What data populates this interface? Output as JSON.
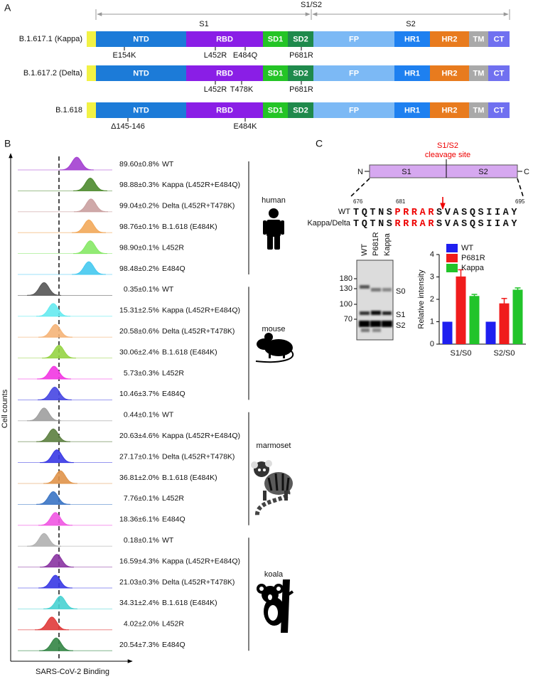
{
  "panel_a": {
    "label": "A",
    "regions": {
      "s1": "S1",
      "junction": "S1/S2",
      "s2": "S2"
    },
    "domains": [
      "NTD",
      "RBD",
      "SD1",
      "SD2",
      "FP",
      "HR1",
      "HR2",
      "TM",
      "CT"
    ],
    "variants": [
      {
        "name": "B.1.617.1 (Kappa)",
        "mutations": [
          "E154K",
          "L452R",
          "E484Q",
          "P681R"
        ]
      },
      {
        "name": "B.1.617.2 (Delta)",
        "mutations": [
          "L452R",
          "T478K",
          "P681R"
        ]
      },
      {
        "name": "B.1.618",
        "mutations": [
          "Δ145-146",
          "E484K"
        ]
      }
    ]
  },
  "panel_b": {
    "label": "B",
    "y_label": "Cell counts",
    "x_label": "SARS-CoV-2 Binding",
    "groups": [
      {
        "species": "human",
        "rows": [
          {
            "value": "89.60±0.8%",
            "name": "WT",
            "color": "#a33fd0"
          },
          {
            "value": "98.88±0.3%",
            "name": "Kappa (L452R+E484Q)",
            "color": "#4d8a2e"
          },
          {
            "value": "99.04±0.2%",
            "name": "Delta (L452R+T478K)",
            "color": "#caa0a0"
          },
          {
            "value": "98.76±0.1%",
            "name": "B.1.618 (E484K)",
            "color": "#f2a85a"
          },
          {
            "value": "98.90±0.1%",
            "name": "L452R",
            "color": "#86e866"
          },
          {
            "value": "98.48±0.2%",
            "name": "E484Q",
            "color": "#45c9f0"
          }
        ]
      },
      {
        "species": "mouse",
        "rows": [
          {
            "value": "0.35±0.1%",
            "name": "WT",
            "color": "#555555"
          },
          {
            "value": "15.31±2.5%",
            "name": "Kappa (L452R+E484Q)",
            "color": "#66eaf0"
          },
          {
            "value": "20.58±0.6%",
            "name": "Delta (L452R+T478K)",
            "color": "#f5b478"
          },
          {
            "value": "30.06±2.4%",
            "name": "B.1.618 (E484K)",
            "color": "#96d444"
          },
          {
            "value": "5.73±0.3%",
            "name": "L452R",
            "color": "#f236e2"
          },
          {
            "value": "10.46±3.7%",
            "name": "E484Q",
            "color": "#4646e2"
          }
        ]
      },
      {
        "species": "marmoset",
        "rows": [
          {
            "value": "0.44±0.1%",
            "name": "WT",
            "color": "#9e9e9e"
          },
          {
            "value": "20.63±4.6%",
            "name": "Kappa (L452R+E484Q)",
            "color": "#5c7f40"
          },
          {
            "value": "27.17±0.1%",
            "name": "Delta (L452R+T478K)",
            "color": "#3838e4"
          },
          {
            "value": "36.81±2.0%",
            "name": "B.1.618 (E484K)",
            "color": "#e0944a"
          },
          {
            "value": "7.76±0.1%",
            "name": "L452R",
            "color": "#3a74c4"
          },
          {
            "value": "18.36±6.1%",
            "name": "E484Q",
            "color": "#f056e2"
          }
        ]
      },
      {
        "species": "koala",
        "rows": [
          {
            "value": "0.18±0.1%",
            "name": "WT",
            "color": "#b0b0b0"
          },
          {
            "value": "16.59±4.3%",
            "name": "Kappa (L452R+E484Q)",
            "color": "#8a34a2"
          },
          {
            "value": "21.03±0.3%",
            "name": "Delta (L452R+T478K)",
            "color": "#3838e4"
          },
          {
            "value": "34.31±2.4%",
            "name": "B.1.618 (E484K)",
            "color": "#48d2d2"
          },
          {
            "value": "4.02±2.0%",
            "name": "L452R",
            "color": "#e03a3a"
          },
          {
            "value": "20.54±7.3%",
            "name": "E484Q",
            "color": "#338545"
          }
        ]
      }
    ]
  },
  "panel_c": {
    "label": "C",
    "cleavage_label": [
      "S1/S2",
      "cleavage site"
    ],
    "n_term": "N",
    "c_term": "C",
    "s1": "S1",
    "s2": "S2",
    "positions": [
      "676",
      "681",
      "695"
    ],
    "sequences": [
      {
        "name": "WT",
        "parts": [
          "TQTNS",
          "PRRAR",
          "SVASQSIIAY"
        ]
      },
      {
        "name": "Kappa/Delta",
        "parts": [
          "TQTNS",
          "RRRAR",
          "SVASQSIIAY"
        ]
      }
    ],
    "blot": {
      "lanes": [
        "WT",
        "P681R",
        "Kappa"
      ],
      "markers": [
        "180",
        "130",
        "100",
        "70"
      ],
      "bands": [
        "S0",
        "S1",
        "S2"
      ]
    }
  },
  "chart_data": {
    "type": "bar",
    "categories": [
      "S1/S0",
      "S2/S0"
    ],
    "series": [
      {
        "name": "WT",
        "color": "#1f1ff0",
        "values": [
          1,
          1
        ],
        "errors": [
          0,
          0
        ]
      },
      {
        "name": "P681R",
        "color": "#f01c1c",
        "values": [
          3.02,
          1.82
        ],
        "errors": [
          0.3,
          0.22
        ]
      },
      {
        "name": "Kappa",
        "color": "#22c42a",
        "values": [
          2.15,
          2.43
        ],
        "errors": [
          0.07,
          0.08
        ]
      }
    ],
    "y_label": "Relative intensity",
    "ylim": [
      0,
      4
    ],
    "yticks": [
      0,
      1,
      2,
      3,
      4
    ],
    "legend": "top-left"
  }
}
